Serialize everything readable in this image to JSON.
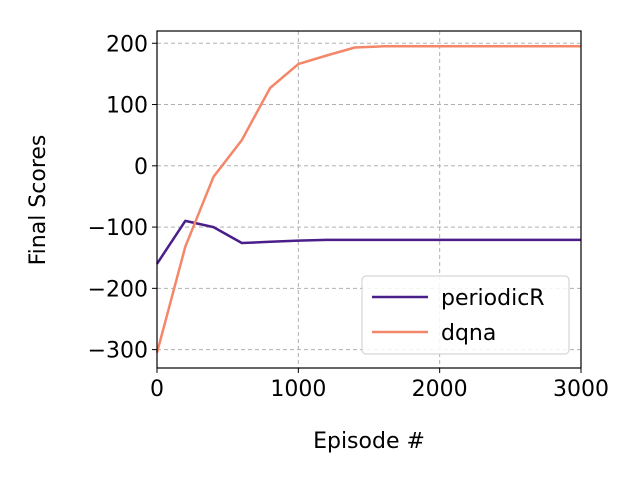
{
  "chart_data": {
    "type": "line",
    "xlabel": "Episode #",
    "ylabel": "Final Scores",
    "xlim": [
      0,
      3000
    ],
    "ylim": [
      -330,
      220
    ],
    "xticks": [
      0,
      1000,
      2000,
      3000
    ],
    "yticks": [
      -300,
      -200,
      -100,
      0,
      100,
      200
    ],
    "grid": true,
    "legend_position": "bottom-right",
    "series": [
      {
        "name": "periodicR",
        "color": "#4a1f8a",
        "x": [
          0,
          200,
          400,
          600,
          800,
          1000,
          1200,
          1400,
          1600,
          1800,
          2000,
          2200,
          2400,
          2600,
          2800,
          3000
        ],
        "y": [
          -160,
          -90,
          -100,
          -126,
          -124,
          -122,
          -121,
          -121,
          -121,
          -121,
          -121,
          -121,
          -121,
          -121,
          -121,
          -121
        ]
      },
      {
        "name": "dqna",
        "color": "#f4876a",
        "x": [
          0,
          200,
          400,
          600,
          800,
          1000,
          1200,
          1400,
          1600,
          1800,
          2000,
          2200,
          2400,
          2600,
          2800,
          3000
        ],
        "y": [
          -305,
          -132,
          -18,
          42,
          127,
          166,
          180,
          193,
          195,
          195,
          195,
          195,
          195,
          195,
          195,
          195
        ]
      }
    ]
  }
}
